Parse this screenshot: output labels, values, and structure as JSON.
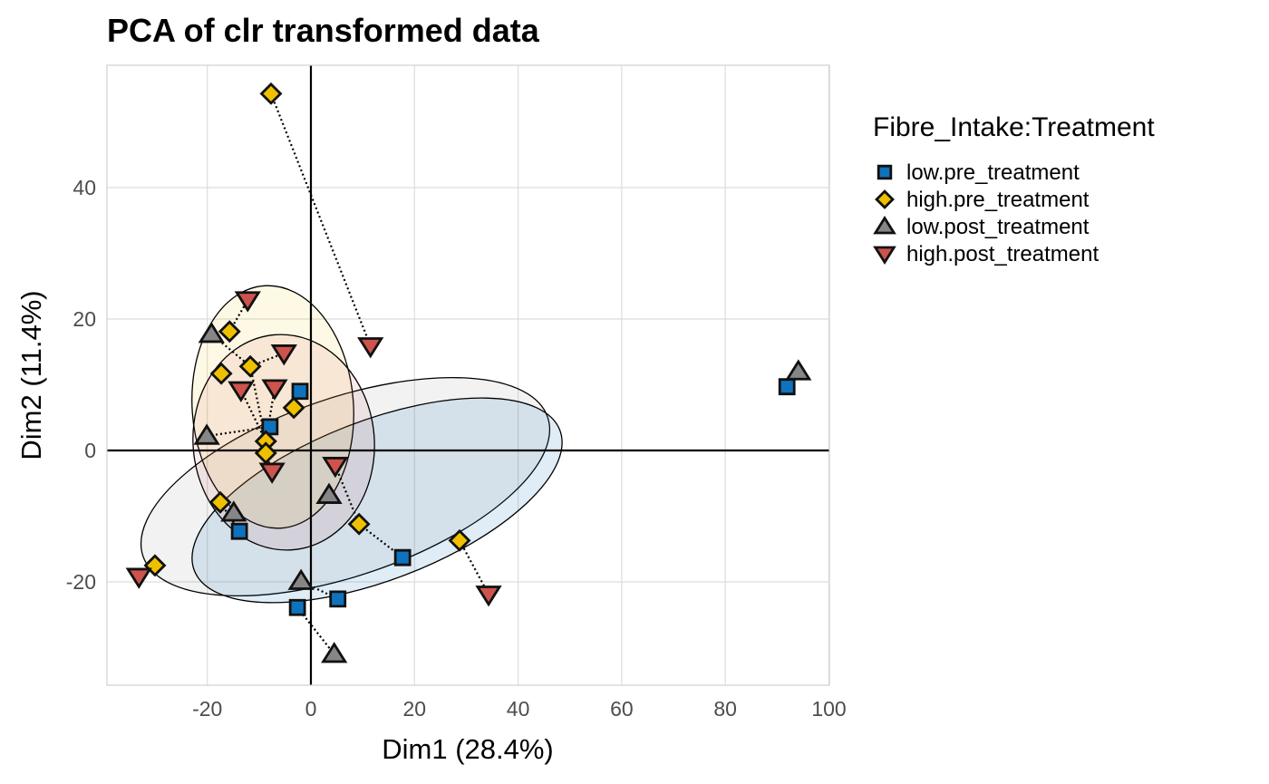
{
  "chart_data": {
    "type": "scatter",
    "title": "PCA of clr transformed data",
    "xlabel": "Dim1 (28.4%)",
    "ylabel": "Dim2 (11.4%)",
    "xlim": [
      -39,
      100
    ],
    "ylim": [
      -35.5,
      58.5
    ],
    "x_ticks": [
      -20,
      0,
      20,
      40,
      60,
      80,
      100
    ],
    "x_tick_labels": [
      "-20",
      "0",
      "20",
      "40",
      "60",
      "80",
      "100"
    ],
    "y_ticks": [
      -20,
      0,
      20,
      40
    ],
    "y_tick_labels": [
      "-20",
      "0",
      "20",
      "40"
    ],
    "grid": true,
    "legend": {
      "title": "Fibre_Intake:Treatment",
      "placement": "right"
    },
    "series": [
      {
        "name": "low.pre_treatment",
        "shape": "square",
        "color": "#0F72BC",
        "points": [
          [
            91.9,
            9.7
          ],
          [
            -2.1,
            9.0
          ],
          [
            -7.9,
            3.6
          ],
          [
            -13.8,
            -12.3
          ],
          [
            17.7,
            -16.3
          ],
          [
            5.2,
            -22.6
          ],
          [
            -2.6,
            -23.9
          ]
        ]
      },
      {
        "name": "high.pre_treatment",
        "shape": "diamond",
        "color": "#EFC000",
        "points": [
          [
            -7.7,
            54.3
          ],
          [
            -15.7,
            18.1
          ],
          [
            -17.3,
            11.7
          ],
          [
            -11.7,
            12.8
          ],
          [
            -3.3,
            6.5
          ],
          [
            -8.7,
            1.4
          ],
          [
            -8.7,
            -0.4
          ],
          [
            -17.5,
            -7.9
          ],
          [
            9.3,
            -11.2
          ],
          [
            28.7,
            -13.7
          ],
          [
            -30.1,
            -17.5
          ]
        ]
      },
      {
        "name": "low.post_treatment",
        "shape": "triangle",
        "color": "#868686",
        "points": [
          [
            94.1,
            12.0
          ],
          [
            -19.2,
            17.7
          ],
          [
            -20.1,
            2.2
          ],
          [
            3.5,
            -6.8
          ],
          [
            -14.9,
            -9.5
          ],
          [
            -1.9,
            -19.9
          ],
          [
            4.5,
            -31.0
          ]
        ]
      },
      {
        "name": "high.post_treatment",
        "shape": "triangle-down",
        "color": "#CD534C",
        "points": [
          [
            -12.2,
            22.9
          ],
          [
            11.5,
            15.9
          ],
          [
            -5.2,
            14.8
          ],
          [
            -13.5,
            9.2
          ],
          [
            -7.0,
            9.5
          ],
          [
            -7.5,
            -3.2
          ],
          [
            4.7,
            -2.3
          ],
          [
            34.3,
            -21.9
          ],
          [
            -33.2,
            -19.2
          ]
        ]
      }
    ],
    "connections": [
      [
        [
          -7.7,
          54.3
        ],
        [
          11.5,
          15.9
        ]
      ],
      [
        [
          -15.7,
          18.1
        ],
        [
          -12.2,
          22.9
        ]
      ],
      [
        [
          -19.2,
          17.7
        ],
        [
          -11.7,
          12.8
        ]
      ],
      [
        [
          -11.7,
          12.8
        ],
        [
          -5.2,
          14.8
        ]
      ],
      [
        [
          -11.7,
          12.8
        ],
        [
          -8.7,
          1.4
        ]
      ],
      [
        [
          -13.5,
          9.2
        ],
        [
          -8.7,
          1.4
        ]
      ],
      [
        [
          -7.0,
          9.5
        ],
        [
          -8.7,
          1.4
        ]
      ],
      [
        [
          -3.3,
          6.5
        ],
        [
          -2.1,
          9.0
        ]
      ],
      [
        [
          -20.1,
          2.2
        ],
        [
          -7.9,
          3.6
        ]
      ],
      [
        [
          -8.7,
          -0.4
        ],
        [
          -7.5,
          -3.2
        ]
      ],
      [
        [
          -17.5,
          -7.9
        ],
        [
          -13.8,
          -12.3
        ]
      ],
      [
        [
          4.7,
          -2.3
        ],
        [
          9.3,
          -11.2
        ]
      ],
      [
        [
          9.3,
          -11.2
        ],
        [
          17.7,
          -16.3
        ]
      ],
      [
        [
          28.7,
          -13.7
        ],
        [
          34.3,
          -21.9
        ]
      ],
      [
        [
          -1.9,
          -19.9
        ],
        [
          5.2,
          -22.6
        ]
      ],
      [
        [
          -2.6,
          -23.9
        ],
        [
          4.5,
          -31.0
        ]
      ],
      [
        [
          -30.1,
          -17.5
        ],
        [
          -33.2,
          -19.2
        ]
      ],
      [
        [
          91.9,
          9.7
        ],
        [
          94.1,
          12.0
        ]
      ]
    ]
  }
}
